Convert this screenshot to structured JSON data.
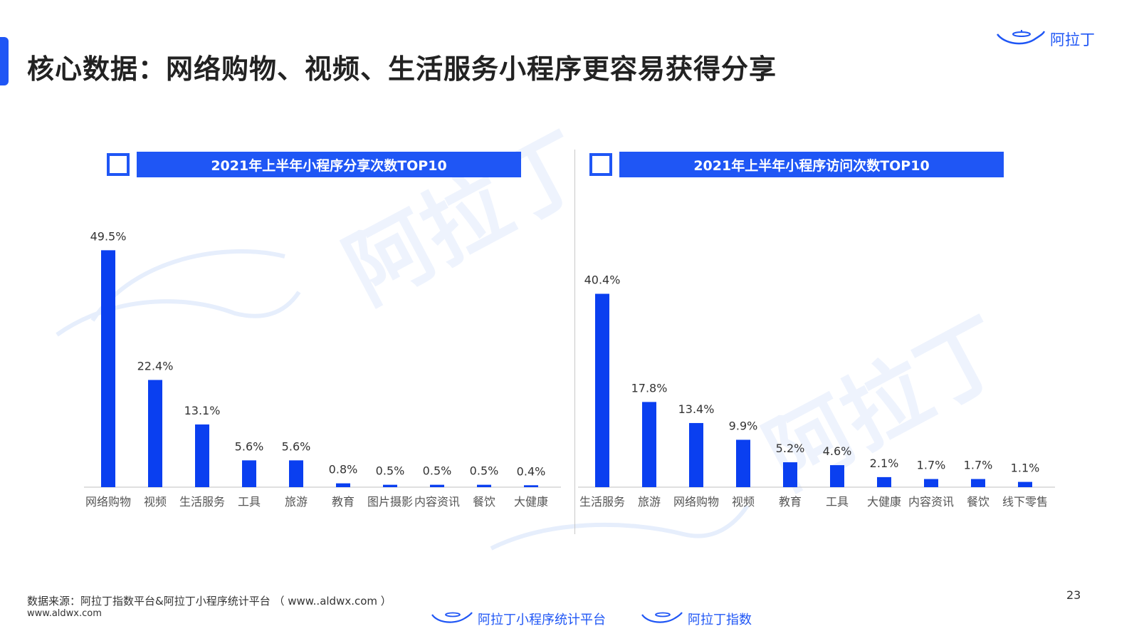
{
  "page": {
    "title": "核心数据：网络购物、视频、生活服务小程序更容易获得分享",
    "brand": "阿拉丁",
    "page_number": "23",
    "watermark_text": "阿拉丁"
  },
  "footer": {
    "source": "数据来源：阿拉丁指数平台&阿拉丁小程序统计平台 （ www..aldwx.com ）",
    "url": "www.aldwx.com",
    "logo_left": "阿拉丁小程序统计平台",
    "logo_right": "阿拉丁指数"
  },
  "colors": {
    "accent": "#1f56f5",
    "bar": "#0a3ff0",
    "text": "#333333"
  },
  "chart_data": [
    {
      "type": "bar",
      "title": "2021年上半年小程序分享次数TOP10",
      "categories": [
        "网络购物",
        "视频",
        "生活服务",
        "工具",
        "旅游",
        "教育",
        "图片摄影",
        "内容资讯",
        "餐饮",
        "大健康"
      ],
      "values": [
        49.5,
        22.4,
        13.1,
        5.6,
        5.6,
        0.8,
        0.5,
        0.5,
        0.5,
        0.4
      ],
      "labels": [
        "49.5%",
        "22.4%",
        "13.1%",
        "5.6%",
        "5.6%",
        "0.8%",
        "0.5%",
        "0.5%",
        "0.5%",
        "0.4%"
      ],
      "ylim": [
        0,
        50
      ],
      "unit": "%"
    },
    {
      "type": "bar",
      "title": "2021年上半年小程序访问次数TOP10",
      "categories": [
        "生活服务",
        "旅游",
        "网络购物",
        "视频",
        "教育",
        "工具",
        "大健康",
        "内容资讯",
        "餐饮",
        "线下零售"
      ],
      "values": [
        40.4,
        17.8,
        13.4,
        9.9,
        5.2,
        4.6,
        2.1,
        1.7,
        1.7,
        1.1
      ],
      "labels": [
        "40.4%",
        "17.8%",
        "13.4%",
        "9.9%",
        "5.2%",
        "4.6%",
        "2.1%",
        "1.7%",
        "1.7%",
        "1.1%"
      ],
      "ylim": [
        0,
        50
      ],
      "unit": "%"
    }
  ]
}
